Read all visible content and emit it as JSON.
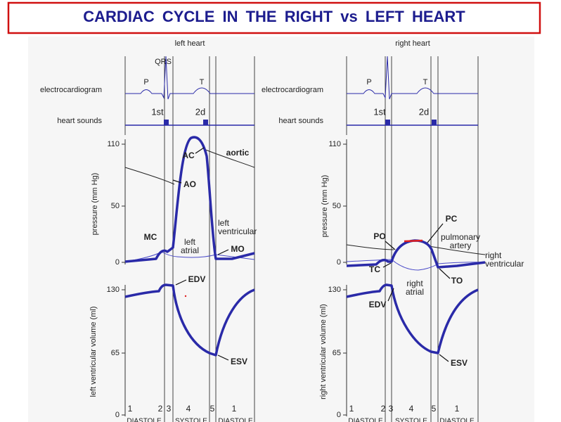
{
  "title": "CARDIAC CYCLE IN THE RIGHT vs LEFT HEART",
  "panels": [
    {
      "heading": "left heart",
      "ecg_label": "electrocardiogram",
      "sounds_label": "heart sounds",
      "ecg_marks": [
        "P",
        "QRS",
        "T"
      ],
      "sound_marks": [
        "1st",
        "2d"
      ],
      "pressure_axis": "pressure (mm Hg)",
      "pressure_ticks": [
        "110",
        "50",
        "0"
      ],
      "volume_axis": "left ventricular volume (ml)",
      "volume_ticks": [
        "130",
        "65",
        "0"
      ],
      "annotations": [
        [
          "AC"
        ],
        [
          "aortic"
        ],
        [
          "AO"
        ],
        [
          "MC"
        ],
        [
          "left",
          "atrial"
        ],
        [
          "left",
          "ventricular"
        ],
        [
          "MO"
        ],
        [
          "EDV"
        ],
        [
          "ESV"
        ]
      ],
      "phases": [
        "1",
        "2",
        "3",
        "4",
        "5",
        "1"
      ],
      "phase_names": [
        "DIASTOLE",
        "SYSTOLE",
        "DIASTOLE"
      ]
    },
    {
      "heading": "right heart",
      "ecg_label": "electrocardiogram",
      "sounds_label": "heart sounds",
      "ecg_marks": [
        "P",
        "T"
      ],
      "sound_marks": [
        "1st",
        "2d"
      ],
      "pressure_axis": "pressure (mm Hg)",
      "pressure_ticks": [
        "110",
        "50",
        "0"
      ],
      "volume_axis": "right ventricular volume (ml)",
      "volume_ticks": [
        "130",
        "65",
        "0"
      ],
      "annotations": [
        [
          "PC"
        ],
        [
          "PO"
        ],
        [
          "pulmonary",
          "artery"
        ],
        [
          "right",
          "ventricular"
        ],
        [
          "TC"
        ],
        [
          "TO"
        ],
        [
          "right",
          "atrial"
        ],
        [
          "EDV"
        ],
        [
          "ESV"
        ]
      ],
      "phases": [
        "1",
        "2",
        "3",
        "4",
        "5",
        "1"
      ],
      "phase_names": [
        "DIASTOLE",
        "SYSTOLE",
        "DIASTOLE"
      ]
    }
  ]
}
